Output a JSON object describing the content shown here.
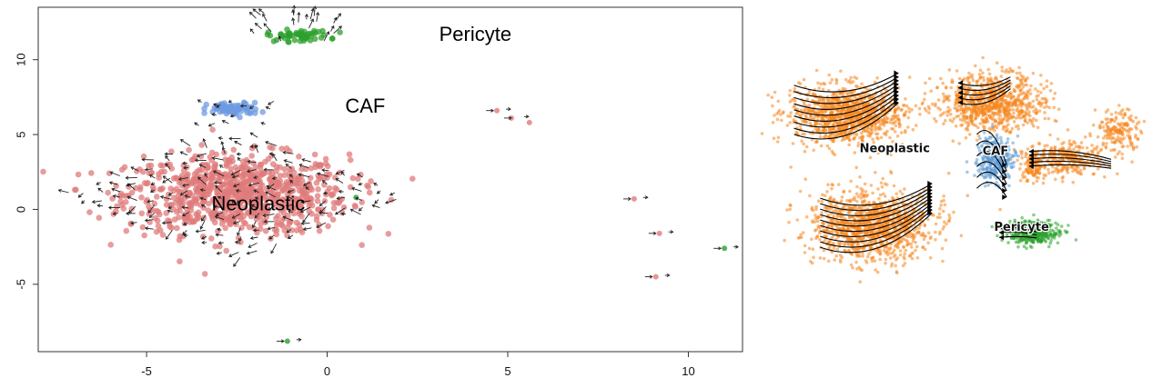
{
  "chart_data": [
    {
      "type": "scatter",
      "title": "",
      "xlabel": "",
      "ylabel": "",
      "xlim": [
        -8,
        11.5
      ],
      "ylim": [
        -9.5,
        13.5
      ],
      "x_ticks": [
        -5,
        0,
        5,
        10
      ],
      "y_ticks": [
        -5,
        0,
        5,
        10
      ],
      "grid": false,
      "arrows": true,
      "clusters": [
        {
          "label": "Neoplastic",
          "color": "#e07b7b",
          "center": [
            -2.5,
            1.0
          ],
          "spread": [
            2.8,
            2.4
          ],
          "n": 850,
          "label_pos": [
            -3.2,
            0.3
          ]
        },
        {
          "label": "CAF",
          "color": "#6e9be3",
          "center": [
            -2.6,
            6.7
          ],
          "spread": [
            0.65,
            0.38
          ],
          "n": 75,
          "label_pos": [
            0.5,
            6.8
          ]
        },
        {
          "label": "Pericyte",
          "color": "#2ca02c",
          "center": [
            -0.8,
            11.6
          ],
          "spread": [
            0.8,
            0.35
          ],
          "n": 55,
          "label_pos": [
            3.1,
            11.6
          ]
        }
      ],
      "outliers": [
        {
          "x": 4.7,
          "y": 6.6,
          "color": "#e07b7b"
        },
        {
          "x": 5.1,
          "y": 6.1,
          "color": "#e07b7b"
        },
        {
          "x": 5.6,
          "y": 5.8,
          "color": "#e07b7b"
        },
        {
          "x": 8.5,
          "y": 0.7,
          "color": "#e07b7b"
        },
        {
          "x": 9.2,
          "y": -1.6,
          "color": "#e07b7b"
        },
        {
          "x": 9.1,
          "y": -4.5,
          "color": "#e07b7b"
        },
        {
          "x": 11.0,
          "y": -2.6,
          "color": "#2ca02c"
        },
        {
          "x": -1.1,
          "y": -8.8,
          "color": "#2ca02c"
        },
        {
          "x": 0.8,
          "y": 0.8,
          "color": "#2ca02c"
        }
      ]
    },
    {
      "type": "scatter",
      "title": "",
      "xlabel": "",
      "ylabel": "",
      "axes": false,
      "streamlines": true,
      "clusters": [
        {
          "label": "Neoplastic",
          "color": "#f5871f",
          "parts": [
            {
              "center": [
                0.2,
                0.29
              ],
              "spread": [
                0.15,
                0.12
              ],
              "n": 1100
            },
            {
              "center": [
                0.27,
                0.74
              ],
              "spread": [
                0.16,
                0.14
              ],
              "n": 1200
            },
            {
              "center": [
                0.59,
                0.24
              ],
              "spread": [
                0.14,
                0.11
              ],
              "n": 850
            },
            {
              "center": [
                0.79,
                0.47
              ],
              "spread": [
                0.11,
                0.07
              ],
              "n": 300
            },
            {
              "center": [
                0.93,
                0.35
              ],
              "spread": [
                0.06,
                0.08
              ],
              "n": 170
            },
            {
              "center": [
                0.7,
                0.5
              ],
              "spread": [
                0.03,
                0.07
              ],
              "n": 90
            }
          ],
          "label_pos": [
            0.33,
            0.43
          ]
        },
        {
          "label": "CAF",
          "color": "#5b9bd5",
          "parts": [
            {
              "center": [
                0.6,
                0.47
              ],
              "spread": [
                0.05,
                0.09
              ],
              "n": 300
            }
          ],
          "label_pos": [
            0.6,
            0.44
          ]
        },
        {
          "label": "Pericyte",
          "color": "#2ca02c",
          "parts": [
            {
              "center": [
                0.7,
                0.77
              ],
              "spread": [
                0.07,
                0.05
              ],
              "n": 380
            }
          ],
          "label_pos": [
            0.67,
            0.75
          ]
        }
      ]
    }
  ]
}
